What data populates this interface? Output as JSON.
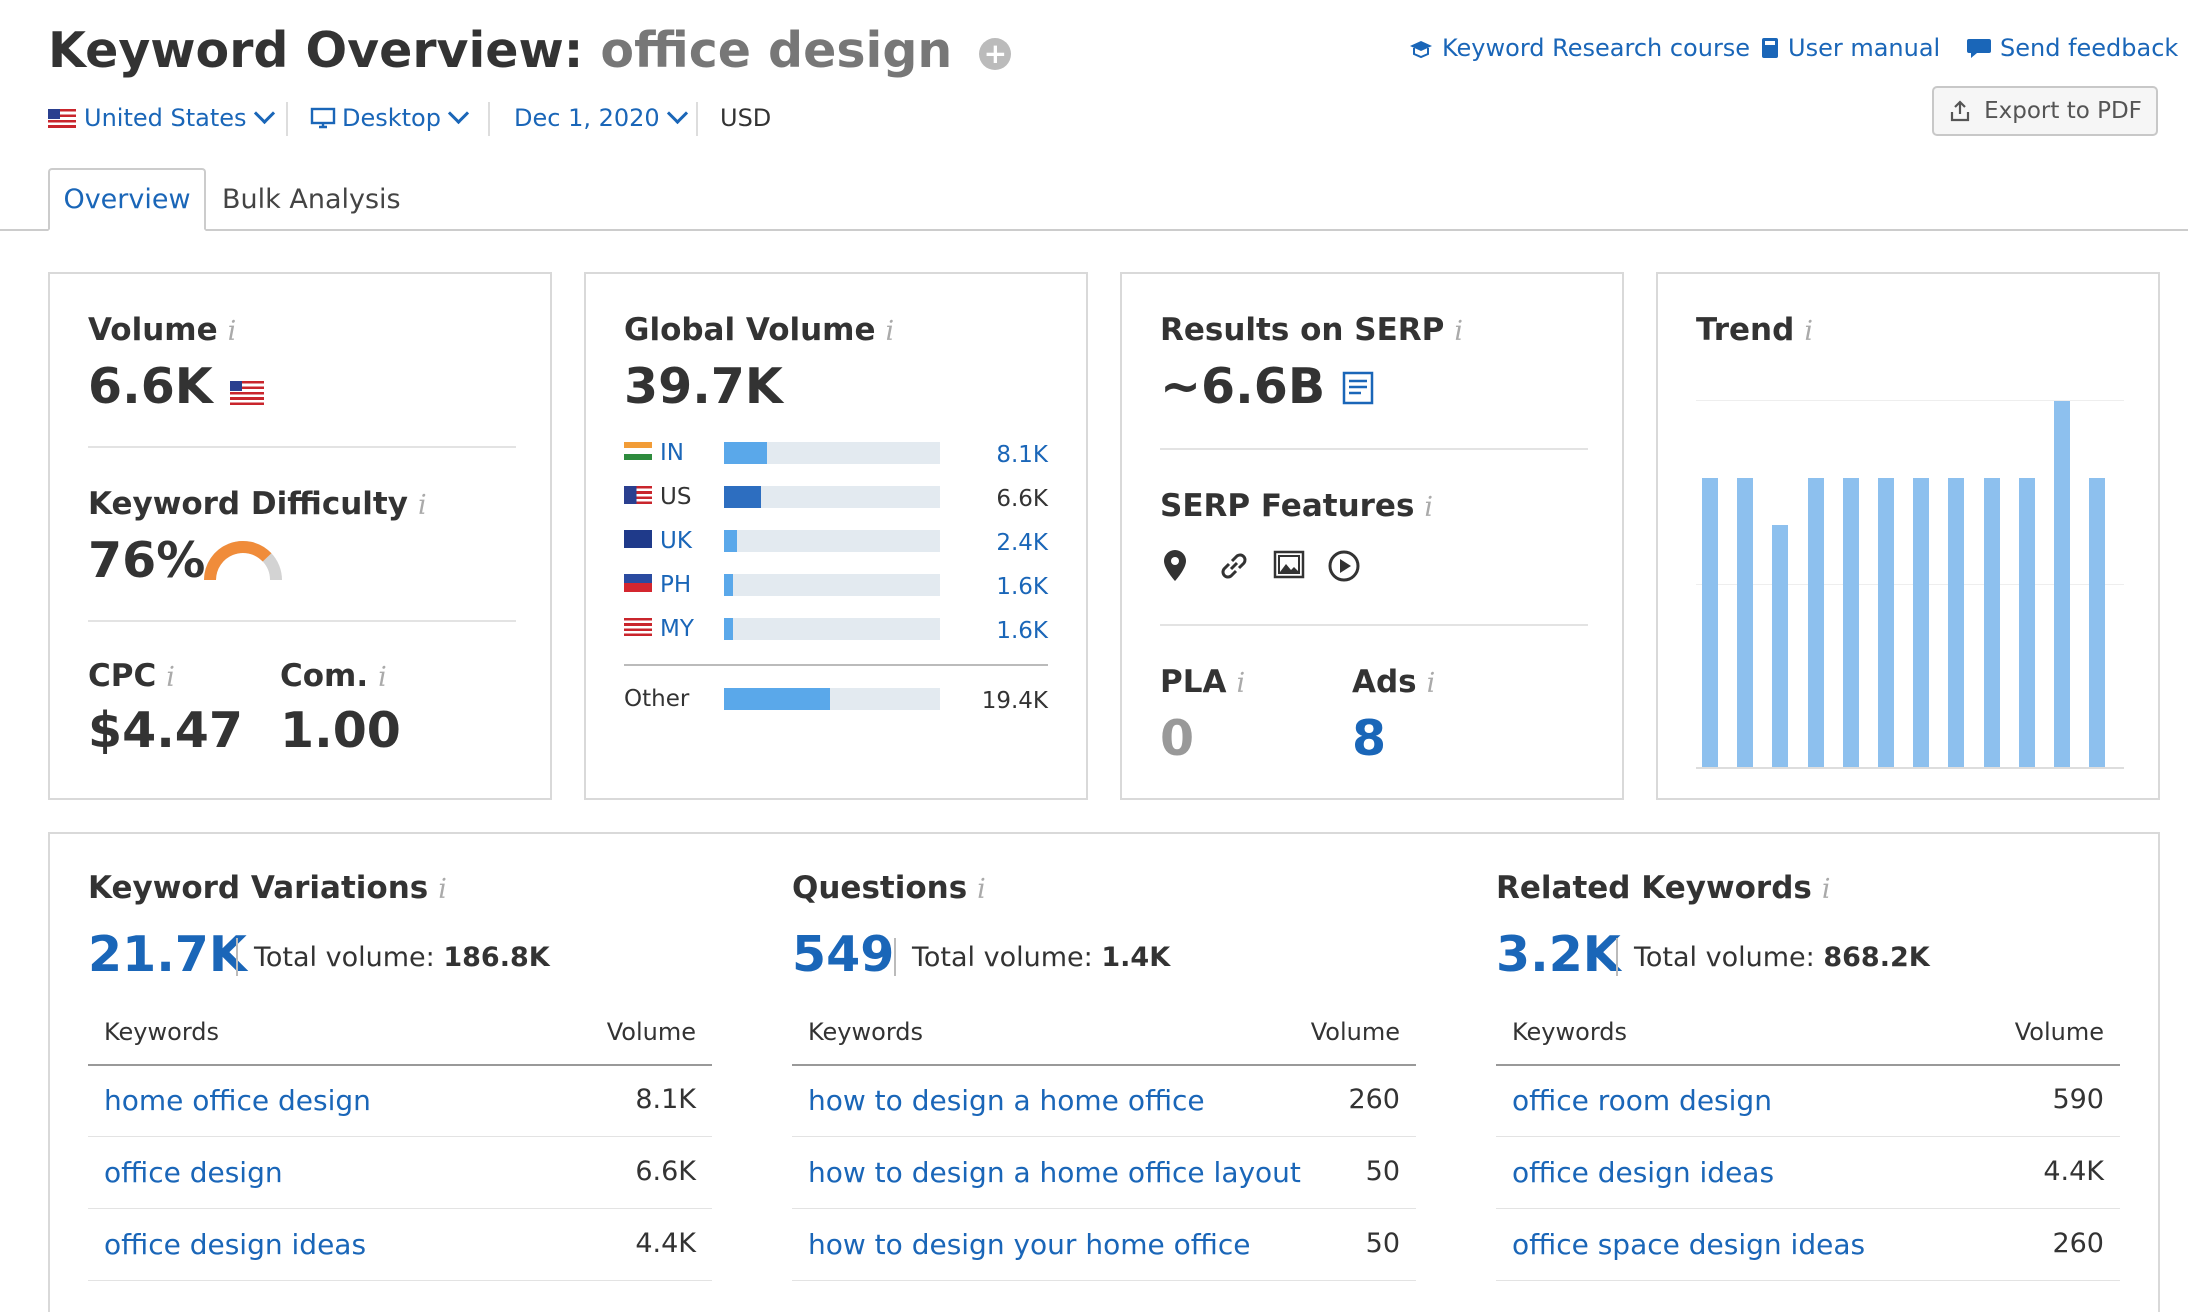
{
  "header": {
    "title_prefix": "Keyword Overview:",
    "keyword": "office design",
    "links": [
      "Keyword Research course",
      "User manual",
      "Send feedback"
    ],
    "export_label": "Export to PDF"
  },
  "filters": {
    "country": "United States",
    "device": "Desktop",
    "date": "Dec 1, 2020",
    "currency": "USD"
  },
  "tabs": [
    "Overview",
    "Bulk Analysis"
  ],
  "volume": {
    "label": "Volume",
    "value": "6.6K",
    "kd_label": "Keyword Difficulty",
    "kd_value": "76%",
    "kd_percent": 76,
    "cpc_label": "CPC",
    "cpc_value": "$4.47",
    "com_label": "Com.",
    "com_value": "1.00"
  },
  "global_volume": {
    "label": "Global Volume",
    "value": "39.7K",
    "rows": [
      {
        "code": "IN",
        "value": "8.1K",
        "fraction": 0.2
      },
      {
        "code": "US",
        "value": "6.6K",
        "fraction": 0.17
      },
      {
        "code": "UK",
        "value": "2.4K",
        "fraction": 0.06
      },
      {
        "code": "PH",
        "value": "1.6K",
        "fraction": 0.04
      },
      {
        "code": "MY",
        "value": "1.6K",
        "fraction": 0.04
      }
    ],
    "other": {
      "label": "Other",
      "value": "19.4K",
      "fraction": 0.49
    }
  },
  "serp": {
    "results_label": "Results on SERP",
    "results_value": "~6.6B",
    "features_label": "SERP Features",
    "feature_icons": [
      "location-icon",
      "link-icon",
      "image-icon",
      "video-icon"
    ],
    "pla_label": "PLA",
    "pla_value": "0",
    "ads_label": "Ads",
    "ads_value": "8"
  },
  "trend": {
    "label": "Trend",
    "values": [
      0.79,
      0.79,
      0.66,
      0.79,
      0.79,
      0.79,
      0.79,
      0.79,
      0.79,
      0.79,
      1.0,
      0.79
    ]
  },
  "variations": {
    "label": "Keyword Variations",
    "count": "21.7K",
    "total_label": "Total volume:",
    "total": "186.8K",
    "col_kw": "Keywords",
    "col_vol": "Volume",
    "rows": [
      {
        "kw": "home office design",
        "vol": "8.1K"
      },
      {
        "kw": "office design",
        "vol": "6.6K"
      },
      {
        "kw": "office design ideas",
        "vol": "4.4K"
      }
    ]
  },
  "questions": {
    "label": "Questions",
    "count": "549",
    "total_label": "Total volume:",
    "total": "1.4K",
    "col_kw": "Keywords",
    "col_vol": "Volume",
    "rows": [
      {
        "kw": "how to design a home office",
        "vol": "260"
      },
      {
        "kw": "how to design a home office layout",
        "vol": "50"
      },
      {
        "kw": "how to design your home office",
        "vol": "50"
      }
    ]
  },
  "related": {
    "label": "Related Keywords",
    "count": "3.2K",
    "total_label": "Total volume:",
    "total": "868.2K",
    "col_kw": "Keywords",
    "col_vol": "Volume",
    "rows": [
      {
        "kw": "office room design",
        "vol": "590"
      },
      {
        "kw": "office design ideas",
        "vol": "4.4K"
      },
      {
        "kw": "office space design ideas",
        "vol": "260"
      }
    ]
  },
  "colors": {
    "link": "#1a66b8",
    "bar": "#5aa8ea",
    "trend": "#8dc0ee",
    "kd": "#f08c3a"
  }
}
